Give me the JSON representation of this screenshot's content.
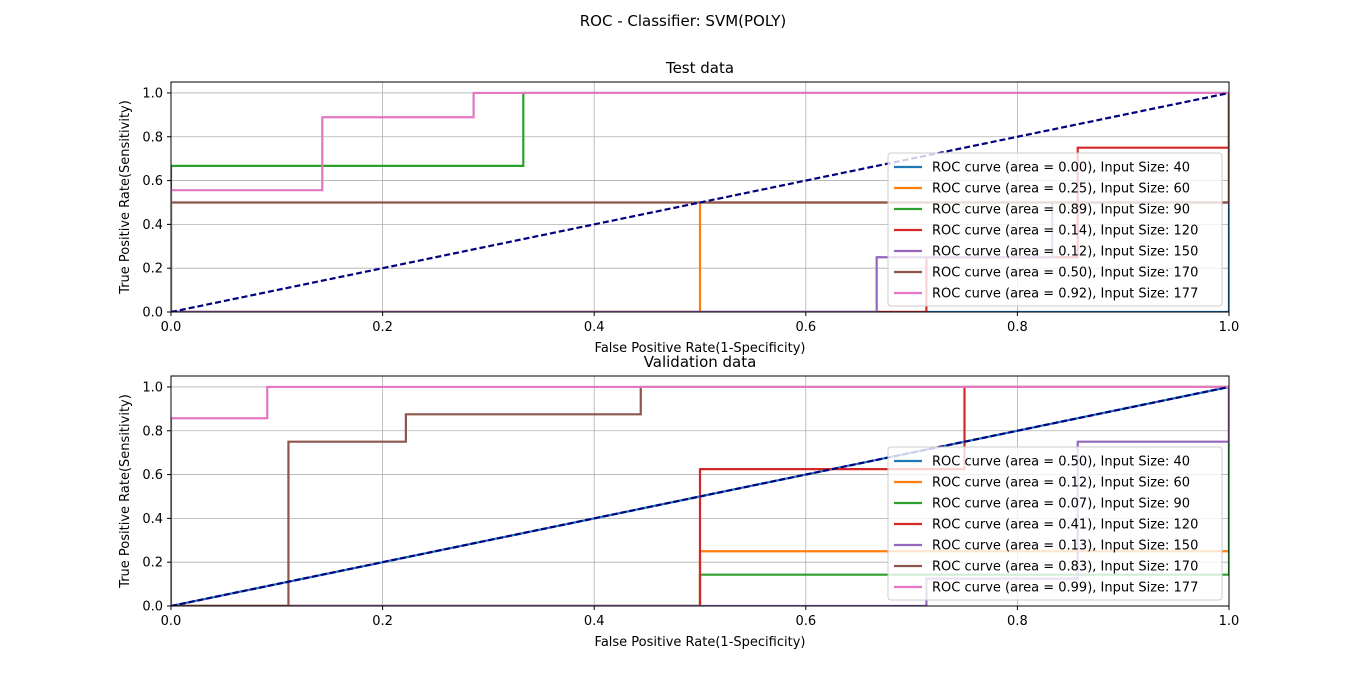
{
  "figure": {
    "suptitle": "ROC - Classifier: SVM(POLY)"
  },
  "colors": {
    "tab_blue": "#1f77b4",
    "tab_orange": "#ff7f0e",
    "tab_green": "#2ca02c",
    "tab_red": "#d62728",
    "tab_purple": "#9467bd",
    "tab_brown": "#8c564b",
    "tab_pink": "#e377c2",
    "diagonal": "#000080",
    "grid": "#b0b0b0"
  },
  "chart_data": [
    {
      "type": "line",
      "title": "Test data",
      "xlabel": "False Positive Rate(1-Specificity)",
      "ylabel": "True Positive Rate(Sensitivity)",
      "xlim": [
        0,
        1
      ],
      "ylim": [
        0,
        1.05
      ],
      "xticks": [
        0.0,
        0.2,
        0.4,
        0.6,
        0.8,
        1.0
      ],
      "yticks": [
        0.0,
        0.2,
        0.4,
        0.6,
        0.8,
        1.0
      ],
      "xtick_labels": [
        "0.0",
        "0.2",
        "0.4",
        "0.6",
        "0.8",
        "1.0"
      ],
      "ytick_labels": [
        "0.0",
        "0.2",
        "0.4",
        "0.6",
        "0.8",
        "1.0"
      ],
      "grid": true,
      "legend_position": "center-right",
      "diagonal": {
        "x": [
          0,
          1
        ],
        "y": [
          0,
          1
        ],
        "style": "dashed"
      },
      "series": [
        {
          "name": "ROC curve (area = 0.00), Input Size: 40",
          "color": "#1f77b4",
          "x": [
            0,
            0,
            1,
            1
          ],
          "y": [
            0,
            0,
            0,
            1
          ]
        },
        {
          "name": "ROC curve (area = 0.25), Input Size: 60",
          "color": "#ff7f0e",
          "x": [
            0,
            0.5,
            0.5,
            1,
            1
          ],
          "y": [
            0,
            0,
            0.5,
            0.5,
            1
          ]
        },
        {
          "name": "ROC curve (area = 0.89), Input Size: 90",
          "color": "#2ca02c",
          "x": [
            0,
            0,
            0.333,
            0.333,
            1
          ],
          "y": [
            0,
            0.667,
            0.667,
            1,
            1
          ]
        },
        {
          "name": "ROC curve (area = 0.14), Input Size: 120",
          "color": "#d62728",
          "x": [
            0,
            0.714,
            0.714,
            0.857,
            0.857,
            1,
            1
          ],
          "y": [
            0,
            0,
            0.25,
            0.25,
            0.75,
            0.75,
            1
          ]
        },
        {
          "name": "ROC curve (area = 0.12), Input Size: 150",
          "color": "#9467bd",
          "x": [
            0,
            0.667,
            0.667,
            0.833,
            0.833,
            1,
            1
          ],
          "y": [
            0,
            0,
            0.25,
            0.25,
            0.5,
            0.5,
            1
          ]
        },
        {
          "name": "ROC curve (area = 0.50), Input Size: 170",
          "color": "#8c564b",
          "x": [
            0,
            0,
            1,
            1
          ],
          "y": [
            0,
            0.5,
            0.5,
            1
          ]
        },
        {
          "name": "ROC curve (area = 0.92), Input Size: 177",
          "color": "#e377c2",
          "x": [
            0,
            0,
            0.143,
            0.143,
            0.286,
            0.286,
            1
          ],
          "y": [
            0,
            0.556,
            0.556,
            0.889,
            0.889,
            1,
            1
          ]
        }
      ]
    },
    {
      "type": "line",
      "title": "Validation data",
      "xlabel": "False Positive Rate(1-Specificity)",
      "ylabel": "True Positive Rate(Sensitivity)",
      "xlim": [
        0,
        1
      ],
      "ylim": [
        0,
        1.05
      ],
      "xticks": [
        0.0,
        0.2,
        0.4,
        0.6,
        0.8,
        1.0
      ],
      "yticks": [
        0.0,
        0.2,
        0.4,
        0.6,
        0.8,
        1.0
      ],
      "xtick_labels": [
        "0.0",
        "0.2",
        "0.4",
        "0.6",
        "0.8",
        "1.0"
      ],
      "ytick_labels": [
        "0.0",
        "0.2",
        "0.4",
        "0.6",
        "0.8",
        "1.0"
      ],
      "grid": true,
      "legend_position": "lower-right",
      "diagonal": {
        "x": [
          0,
          1
        ],
        "y": [
          0,
          1
        ],
        "style": "dashed"
      },
      "series": [
        {
          "name": "ROC curve (area = 0.50), Input Size: 40",
          "color": "#1f77b4",
          "x": [
            0,
            1
          ],
          "y": [
            0,
            1
          ]
        },
        {
          "name": "ROC curve (area = 0.12), Input Size: 60",
          "color": "#ff7f0e",
          "x": [
            0,
            0.5,
            0.5,
            1,
            1
          ],
          "y": [
            0,
            0,
            0.25,
            0.25,
            1
          ]
        },
        {
          "name": "ROC curve (area = 0.07), Input Size: 90",
          "color": "#2ca02c",
          "x": [
            0,
            0.5,
            0.5,
            1,
            1
          ],
          "y": [
            0,
            0,
            0.143,
            0.143,
            1
          ]
        },
        {
          "name": "ROC curve (area = 0.41), Input Size: 120",
          "color": "#d62728",
          "x": [
            0,
            0.5,
            0.5,
            0.75,
            0.75,
            1
          ],
          "y": [
            0,
            0,
            0.625,
            0.625,
            1,
            1
          ]
        },
        {
          "name": "ROC curve (area = 0.13), Input Size: 150",
          "color": "#9467bd",
          "x": [
            0,
            0.714,
            0.714,
            0.857,
            0.857,
            1,
            1
          ],
          "y": [
            0,
            0,
            0.125,
            0.125,
            0.75,
            0.75,
            1
          ]
        },
        {
          "name": "ROC curve (area = 0.83), Input Size: 170",
          "color": "#8c564b",
          "x": [
            0,
            0.111,
            0.111,
            0.222,
            0.222,
            0.444,
            0.444,
            1
          ],
          "y": [
            0,
            0,
            0.75,
            0.75,
            0.875,
            0.875,
            1,
            1
          ]
        },
        {
          "name": "ROC curve (area = 0.99), Input Size: 177",
          "color": "#e377c2",
          "x": [
            0,
            0,
            0.091,
            0.091,
            1
          ],
          "y": [
            0,
            0.857,
            0.857,
            1,
            1
          ]
        }
      ]
    }
  ]
}
